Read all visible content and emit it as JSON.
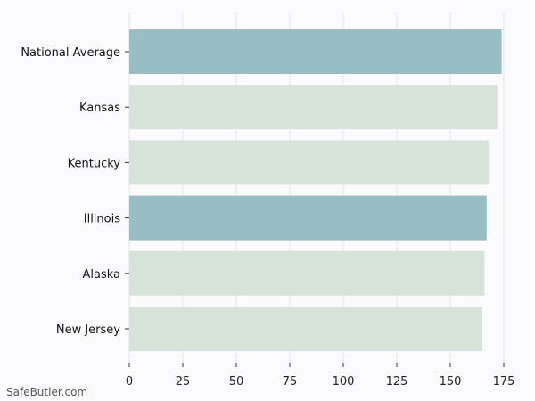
{
  "chart_data": {
    "type": "bar",
    "orientation": "horizontal",
    "categories": [
      "National Average",
      "Kansas",
      "Kentucky",
      "Illinois",
      "Alaska",
      "New Jersey"
    ],
    "values": [
      174,
      172,
      168,
      167,
      166,
      165
    ],
    "bar_colors": [
      "#97bdc5",
      "#d5e3d9",
      "#d5e3d9",
      "#97bdc5",
      "#d5e3d9",
      "#d5e3d9"
    ],
    "xlim": [
      0,
      175
    ],
    "xticks": [
      0,
      25,
      50,
      75,
      100,
      125,
      150,
      175
    ],
    "grid": true,
    "title": "",
    "xlabel": "",
    "ylabel": ""
  },
  "watermark": "SafeButler.com"
}
